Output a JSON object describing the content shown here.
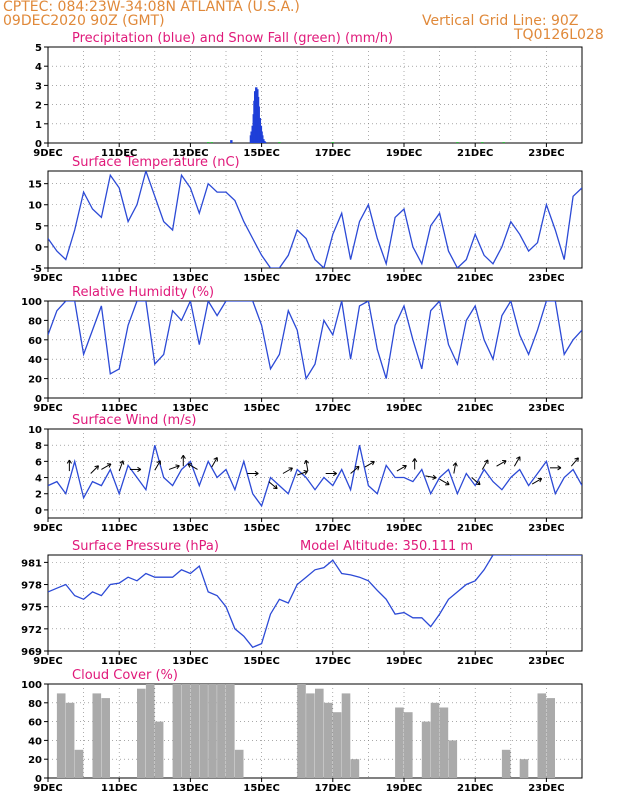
{
  "header": {
    "line1": "CPTEC:  084:23W-34:08N   ATLANTA (U.S.A.)",
    "line2": "09DEC2020 90Z (GMT)",
    "grid_note": "Vertical Grid Line: 90Z",
    "code": "TQ0126L028"
  },
  "colors": {
    "header": "#e0893a",
    "title": "#e0197a",
    "line": "#2c4ad6",
    "precip": "#1f3fd8",
    "snow": "#2bbd3a",
    "cloud": "#aaaaaa",
    "wind_arrow": "#000000"
  },
  "x_ticks": [
    "9DEC",
    "11DEC",
    "13DEC",
    "15DEC",
    "17DEC",
    "19DEC",
    "21DEC",
    "23DEC"
  ],
  "chart_data": [
    {
      "id": "precip",
      "type": "bar",
      "title": "Precipitation (blue) and Snow Fall (green) (mm/h)",
      "ylim": [
        0,
        5
      ],
      "yticks": [
        0,
        1,
        2,
        3,
        4,
        5
      ],
      "x_unit": "days since 9DEC 00Z",
      "series": [
        {
          "name": "Precipitation",
          "x": [
            5.15,
            5.7,
            5.72,
            5.75,
            5.78,
            5.8,
            5.82,
            5.85,
            5.88,
            5.9,
            5.92,
            5.95,
            5.98,
            6.0,
            6.02,
            6.05,
            6.08,
            6.1
          ],
          "values": [
            0.15,
            0.4,
            0.6,
            0.9,
            1.5,
            2.2,
            2.7,
            2.9,
            2.8,
            2.4,
            1.9,
            1.3,
            0.9,
            0.6,
            0.4,
            0.2,
            0.1,
            0.05
          ]
        },
        {
          "name": "Snow Fall",
          "x": [
            4.5,
            4.6,
            6.5,
            8.0,
            11.5,
            12.2,
            12.8
          ],
          "values": [
            0.05,
            0.05,
            0.05,
            0.05,
            0.05,
            0.05,
            0.05
          ]
        }
      ]
    },
    {
      "id": "temp",
      "type": "line",
      "title": "Surface Temperature (nC)",
      "ylim": [
        -5,
        18
      ],
      "yticks": [
        -5,
        0,
        5,
        10,
        15
      ],
      "x": [
        0,
        0.25,
        0.5,
        0.75,
        1,
        1.25,
        1.5,
        1.75,
        2,
        2.25,
        2.5,
        2.75,
        3,
        3.25,
        3.5,
        3.75,
        4,
        4.25,
        4.5,
        4.75,
        5,
        5.25,
        5.5,
        5.75,
        6,
        6.25,
        6.5,
        6.75,
        7,
        7.25,
        7.5,
        7.75,
        8,
        8.25,
        8.5,
        8.75,
        9,
        9.25,
        9.5,
        9.75,
        10,
        10.25,
        10.5,
        10.75,
        11,
        11.25,
        11.5,
        11.75,
        12,
        12.25,
        12.5,
        12.75,
        13,
        13.25,
        13.5,
        13.75,
        14,
        14.25,
        14.5,
        14.75,
        15
      ],
      "values": [
        2,
        -1,
        -3,
        4,
        13,
        9,
        7,
        17,
        14,
        6,
        10,
        18,
        12,
        6,
        4,
        17,
        14,
        8,
        15,
        13,
        13,
        11,
        6,
        2,
        -2,
        -5,
        -5,
        -2,
        4,
        2,
        -3,
        -5,
        3,
        8,
        -3,
        6,
        10,
        2,
        -4,
        7,
        9,
        0,
        -4,
        5,
        8,
        -1,
        -5,
        -3,
        3,
        -2,
        -4,
        0,
        6,
        3,
        -1,
        1,
        10,
        4,
        -3,
        12,
        14
      ]
    },
    {
      "id": "rh",
      "type": "line",
      "title": "Relative Humidity (%)",
      "ylim": [
        0,
        100
      ],
      "yticks": [
        0,
        20,
        40,
        60,
        80,
        100
      ],
      "x": [
        0,
        0.25,
        0.5,
        0.75,
        1,
        1.25,
        1.5,
        1.75,
        2,
        2.25,
        2.5,
        2.75,
        3,
        3.25,
        3.5,
        3.75,
        4,
        4.25,
        4.5,
        4.75,
        5,
        5.25,
        5.5,
        5.75,
        6,
        6.25,
        6.5,
        6.75,
        7,
        7.25,
        7.5,
        7.75,
        8,
        8.25,
        8.5,
        8.75,
        9,
        9.25,
        9.5,
        9.75,
        10,
        10.25,
        10.5,
        10.75,
        11,
        11.25,
        11.5,
        11.75,
        12,
        12.25,
        12.5,
        12.75,
        13,
        13.25,
        13.5,
        13.75,
        14,
        14.25,
        14.5,
        14.75,
        15
      ],
      "values": [
        65,
        90,
        100,
        100,
        45,
        70,
        95,
        25,
        30,
        75,
        100,
        100,
        35,
        45,
        90,
        80,
        100,
        55,
        100,
        85,
        100,
        100,
        100,
        100,
        75,
        30,
        45,
        90,
        70,
        20,
        35,
        80,
        65,
        100,
        40,
        95,
        100,
        50,
        20,
        75,
        95,
        60,
        30,
        90,
        100,
        55,
        35,
        80,
        95,
        60,
        40,
        85,
        100,
        65,
        45,
        70,
        100,
        100,
        45,
        60,
        70
      ]
    },
    {
      "id": "wind",
      "type": "line",
      "title": "Surface Wind (m/s)",
      "ylim": [
        -1,
        10
      ],
      "yticks": [
        0,
        2,
        4,
        6,
        8,
        10
      ],
      "x": [
        0,
        0.25,
        0.5,
        0.75,
        1,
        1.25,
        1.5,
        1.75,
        2,
        2.25,
        2.5,
        2.75,
        3,
        3.25,
        3.5,
        3.75,
        4,
        4.25,
        4.5,
        4.75,
        5,
        5.25,
        5.5,
        5.75,
        6,
        6.25,
        6.5,
        6.75,
        7,
        7.25,
        7.5,
        7.75,
        8,
        8.25,
        8.5,
        8.75,
        9,
        9.25,
        9.5,
        9.75,
        10,
        10.25,
        10.5,
        10.75,
        11,
        11.25,
        11.5,
        11.75,
        12,
        12.25,
        12.5,
        12.75,
        13,
        13.25,
        13.5,
        13.75,
        14,
        14.25,
        14.5,
        14.75,
        15
      ],
      "values": [
        3,
        3.5,
        2,
        6,
        1.5,
        3.5,
        3,
        5,
        2,
        5.5,
        4,
        2.5,
        8,
        4,
        3,
        5,
        6,
        3,
        6,
        4,
        5,
        2.5,
        6,
        2,
        0.5,
        4,
        3,
        2,
        5,
        4,
        2.5,
        4,
        3,
        5,
        2.5,
        8,
        3,
        2,
        5.5,
        4,
        4,
        3.5,
        5,
        2,
        4,
        5,
        2,
        4.5,
        3,
        5,
        3.5,
        2.5,
        4,
        5,
        3,
        4.5,
        6,
        2,
        4,
        5,
        3
      ],
      "arrows": [
        {
          "x": 0.6,
          "y": 4.8,
          "angle": -90
        },
        {
          "x": 1.2,
          "y": 4.5,
          "angle": -45
        },
        {
          "x": 1.5,
          "y": 5.0,
          "angle": -30
        },
        {
          "x": 2.0,
          "y": 4.8,
          "angle": -70
        },
        {
          "x": 2.3,
          "y": 5.0,
          "angle": 0
        },
        {
          "x": 3.0,
          "y": 4.9,
          "angle": -60
        },
        {
          "x": 3.4,
          "y": 5.0,
          "angle": -20
        },
        {
          "x": 3.8,
          "y": 5.4,
          "angle": -90
        },
        {
          "x": 4.2,
          "y": 5.0,
          "angle": -150
        },
        {
          "x": 4.6,
          "y": 5.3,
          "angle": -60
        },
        {
          "x": 5.6,
          "y": 4.5,
          "angle": 0
        },
        {
          "x": 6.2,
          "y": 3.5,
          "angle": 40
        },
        {
          "x": 6.6,
          "y": 4.5,
          "angle": -30
        },
        {
          "x": 7.0,
          "y": 4.3,
          "angle": -20
        },
        {
          "x": 7.3,
          "y": 4.8,
          "angle": -100
        },
        {
          "x": 7.8,
          "y": 4.5,
          "angle": 0
        },
        {
          "x": 8.5,
          "y": 4.5,
          "angle": -40
        },
        {
          "x": 8.9,
          "y": 5.3,
          "angle": -30
        },
        {
          "x": 9.8,
          "y": 4.8,
          "angle": -30
        },
        {
          "x": 10.3,
          "y": 5.0,
          "angle": -90
        },
        {
          "x": 10.6,
          "y": 4.2,
          "angle": 10
        },
        {
          "x": 11.0,
          "y": 3.8,
          "angle": 30
        },
        {
          "x": 11.4,
          "y": 4.5,
          "angle": -80
        },
        {
          "x": 11.9,
          "y": 4.0,
          "angle": 40
        },
        {
          "x": 12.2,
          "y": 5.0,
          "angle": -60
        },
        {
          "x": 12.6,
          "y": 5.4,
          "angle": -30
        },
        {
          "x": 13.1,
          "y": 5.4,
          "angle": -60
        },
        {
          "x": 13.6,
          "y": 3.2,
          "angle": -30
        },
        {
          "x": 14.1,
          "y": 5.2,
          "angle": 0
        },
        {
          "x": 14.7,
          "y": 5.4,
          "angle": -50
        }
      ]
    },
    {
      "id": "pressure",
      "type": "line",
      "title": "Surface Pressure (hPa)",
      "subtitle": "Model Altitude: 350.111  m",
      "ylim": [
        969,
        982
      ],
      "yticks": [
        969,
        972,
        975,
        978,
        981
      ],
      "x": [
        0,
        0.25,
        0.5,
        0.75,
        1,
        1.25,
        1.5,
        1.75,
        2,
        2.25,
        2.5,
        2.75,
        3,
        3.25,
        3.5,
        3.75,
        4,
        4.25,
        4.5,
        4.75,
        5,
        5.25,
        5.5,
        5.75,
        6,
        6.25,
        6.5,
        6.75,
        7,
        7.25,
        7.5,
        7.75,
        8,
        8.25,
        8.5,
        8.75,
        9,
        9.25,
        9.5,
        9.75,
        10,
        10.25,
        10.5,
        10.75,
        11,
        11.25,
        11.5,
        11.75,
        12,
        12.25,
        12.5,
        12.75,
        13,
        13.25,
        13.5,
        13.75,
        14,
        14.25,
        14.5,
        14.75,
        15
      ],
      "values": [
        977,
        977.5,
        978,
        976.5,
        976,
        977,
        976.5,
        978,
        978.2,
        979,
        978.5,
        979.5,
        979,
        979,
        979,
        980,
        979.5,
        980.5,
        977,
        976.5,
        975,
        972,
        971,
        969.5,
        970,
        974,
        976,
        975.5,
        978,
        979,
        980,
        980.3,
        981.3,
        979.5,
        979.3,
        979,
        978.5,
        977.2,
        976,
        974,
        974.2,
        973.5,
        973.5,
        972.3,
        974,
        976,
        977,
        978,
        978.5,
        980,
        982,
        982,
        982,
        982,
        982,
        982,
        982,
        982,
        982,
        982,
        982
      ]
    },
    {
      "id": "cloud",
      "type": "area",
      "title": "Cloud Cover (%)",
      "ylim": [
        0,
        100
      ],
      "yticks": [
        0,
        20,
        40,
        60,
        80,
        100
      ],
      "x": [
        0,
        0.25,
        0.5,
        0.75,
        1,
        1.25,
        1.5,
        1.75,
        2,
        2.25,
        2.5,
        2.75,
        3,
        3.25,
        3.5,
        3.75,
        4,
        4.25,
        4.5,
        4.75,
        5,
        5.25,
        5.5,
        5.75,
        6,
        6.25,
        6.5,
        6.75,
        7,
        7.25,
        7.5,
        7.75,
        8,
        8.25,
        8.5,
        8.75,
        9,
        9.25,
        9.5,
        9.75,
        10,
        10.25,
        10.5,
        10.75,
        11,
        11.25,
        11.5,
        11.75,
        12,
        12.25,
        12.5,
        12.75,
        13,
        13.25,
        13.5,
        13.75,
        14,
        14.25,
        14.5,
        14.75,
        15
      ],
      "values": [
        0,
        90,
        80,
        30,
        0,
        90,
        85,
        0,
        0,
        0,
        95,
        100,
        60,
        0,
        100,
        100,
        100,
        100,
        100,
        100,
        100,
        30,
        0,
        0,
        0,
        0,
        0,
        0,
        100,
        90,
        95,
        80,
        70,
        90,
        20,
        0,
        0,
        0,
        0,
        75,
        70,
        0,
        60,
        80,
        75,
        40,
        0,
        0,
        0,
        0,
        0,
        30,
        0,
        20,
        0,
        90,
        85,
        0,
        0,
        0,
        0
      ]
    }
  ]
}
